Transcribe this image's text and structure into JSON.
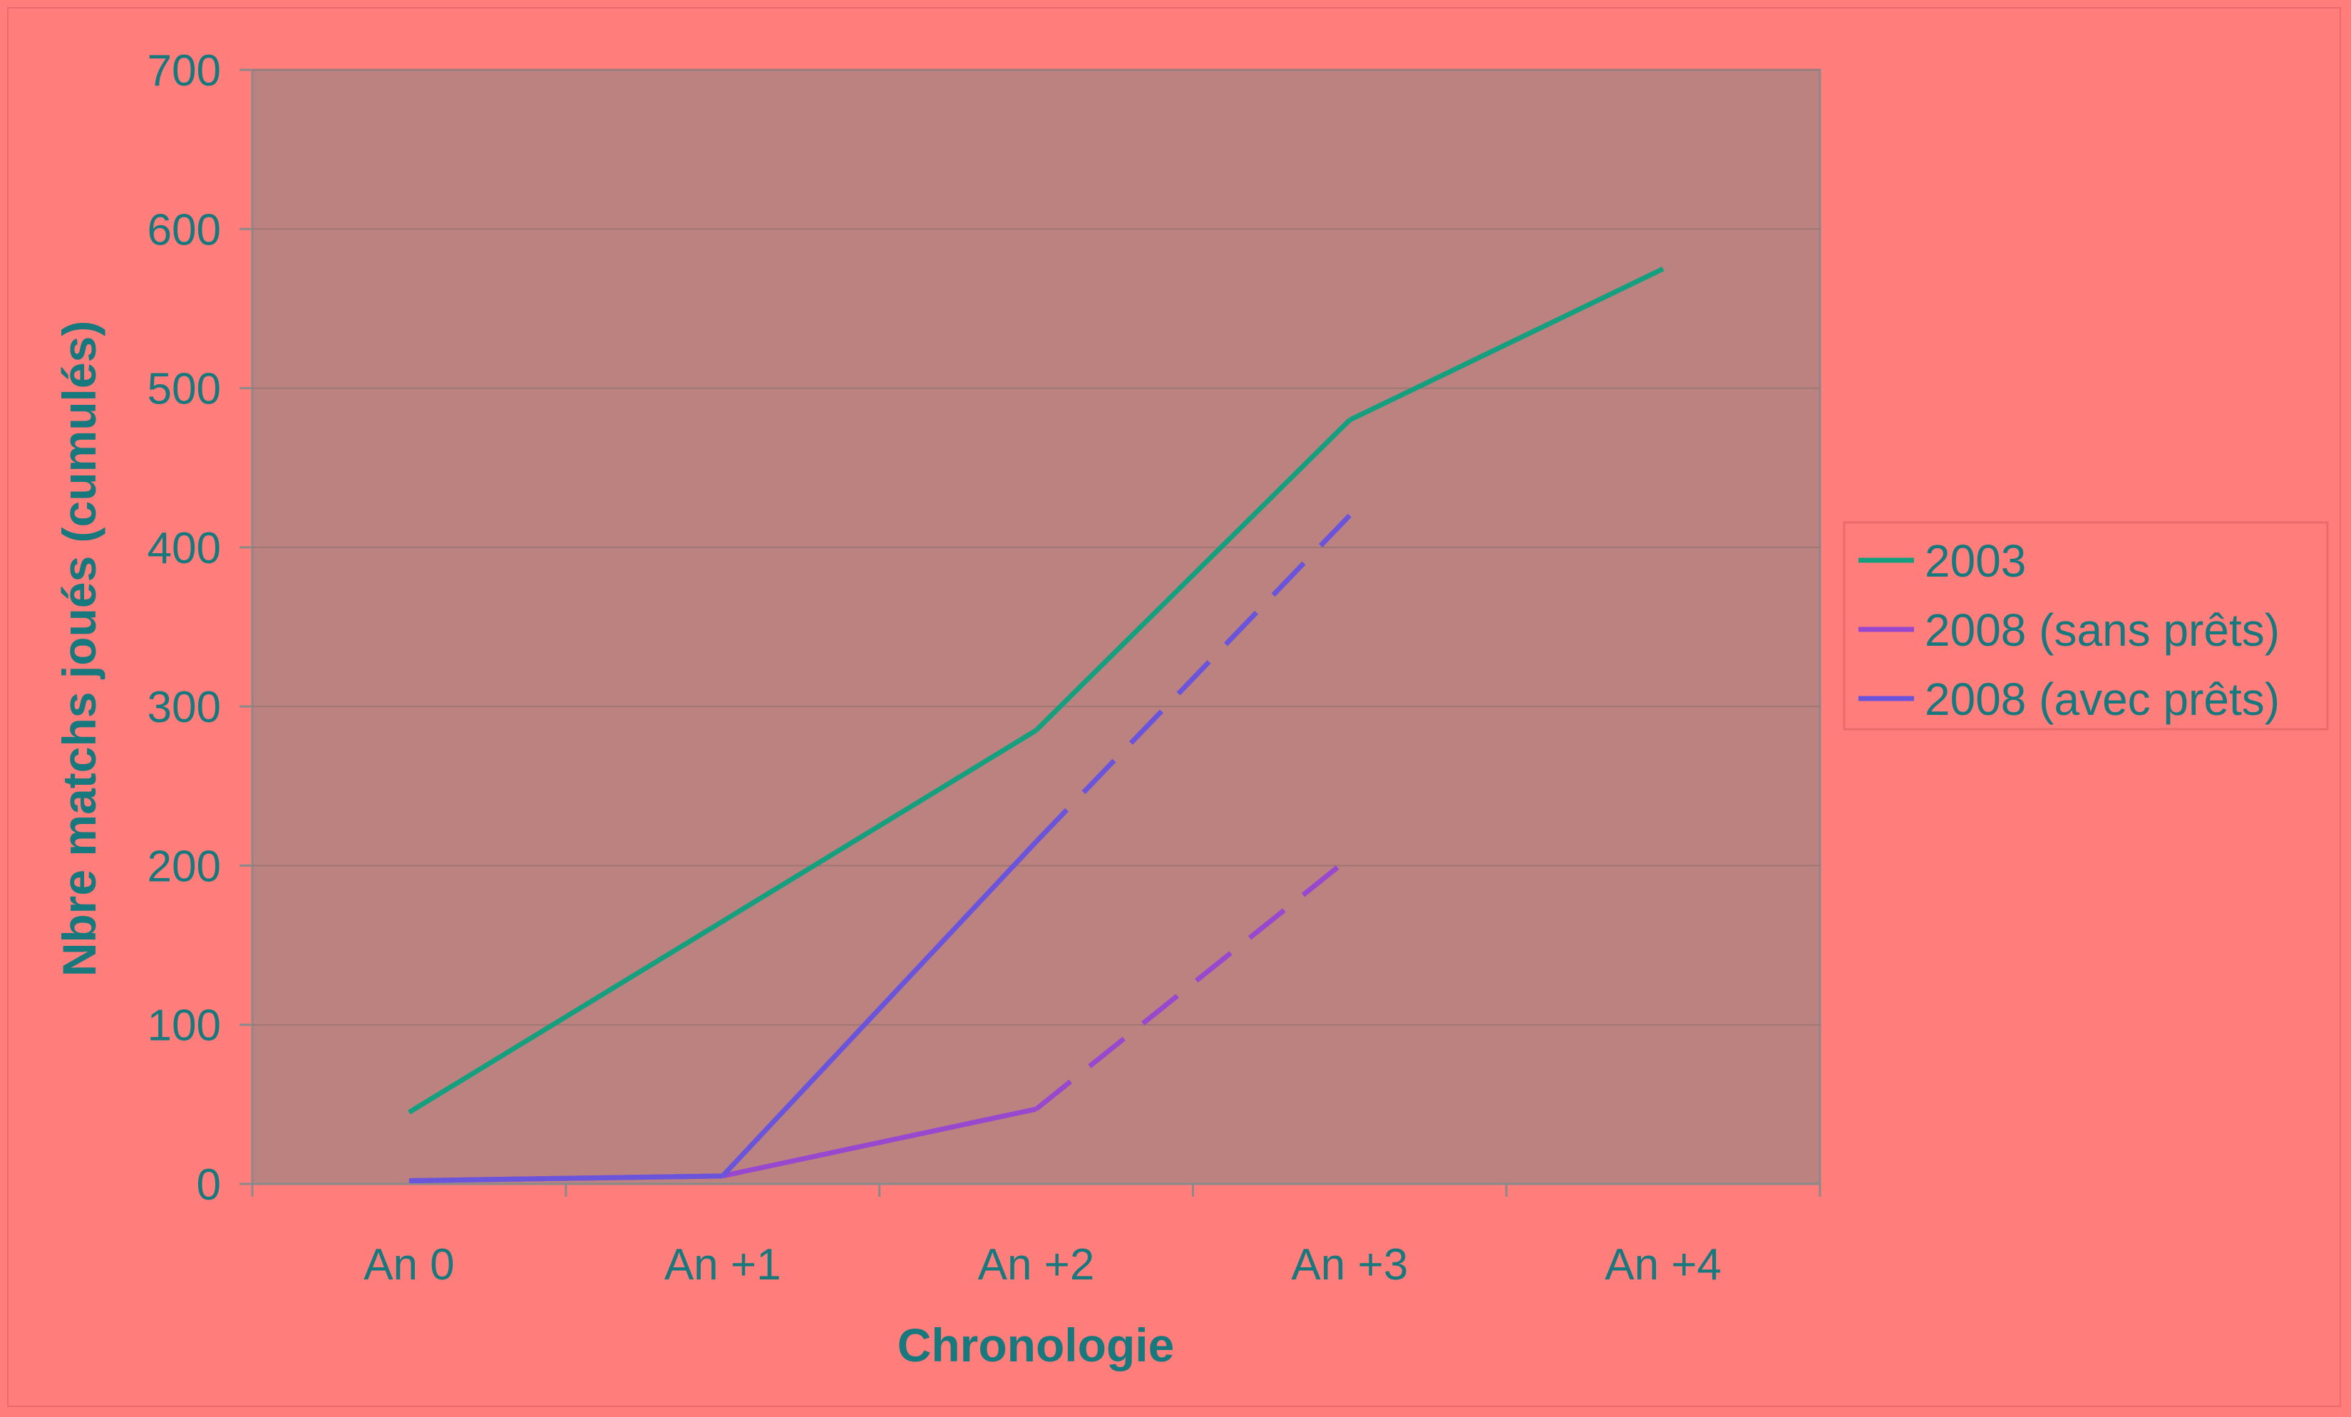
{
  "chart_data": {
    "type": "line",
    "title": "",
    "xlabel": "Chronologie",
    "ylabel": "Nbre matchs joués (cumulés)",
    "categories": [
      "An 0",
      "An +1",
      "An +2",
      "An +3",
      "An +4"
    ],
    "ylim": [
      0,
      700
    ],
    "yticks": [
      0,
      100,
      200,
      300,
      400,
      500,
      600,
      700
    ],
    "grid": true,
    "legend_position": "right",
    "plot_background": "#bb827f",
    "page_background": "#ff7d7b",
    "text_color": "#17797d",
    "series": [
      {
        "name": "2003",
        "color": "#149f7f",
        "values": [
          45,
          165,
          285,
          480,
          575
        ],
        "dashed_from_index": null
      },
      {
        "name": "2008 (sans prêts)",
        "color": "#9848ce",
        "values": [
          2,
          5,
          47,
          205,
          null
        ],
        "dashed_from_index": 2
      },
      {
        "name": "2008 (avec prêts)",
        "color": "#6b54dc",
        "values": [
          2,
          5,
          215,
          420,
          null
        ],
        "dashed_from_index": 2
      }
    ]
  }
}
